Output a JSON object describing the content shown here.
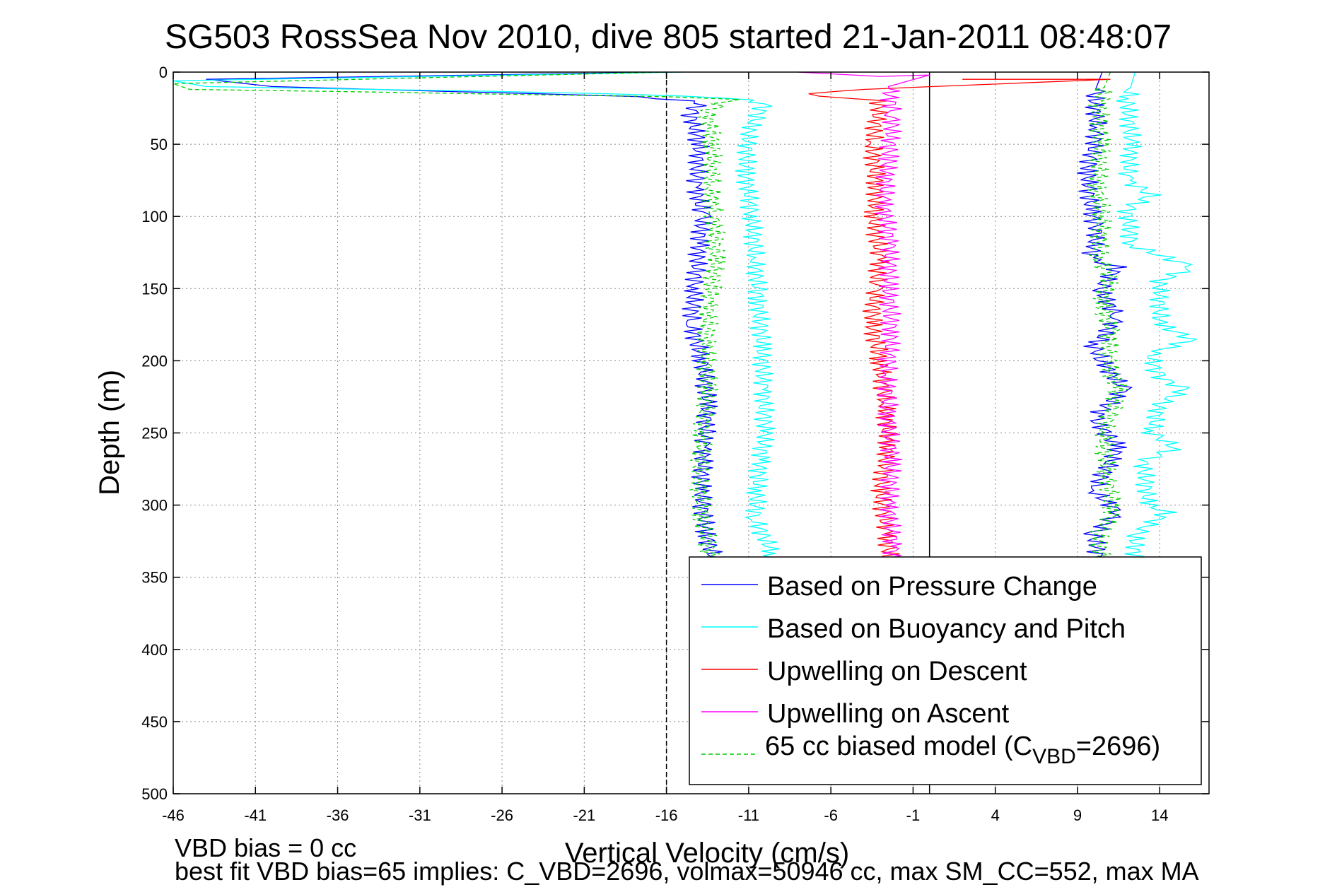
{
  "chart_data": {
    "type": "line",
    "title": "SG503 RossSea Nov 2010, dive 805 started 21-Jan-2011 08:48:07",
    "xlabel": "Vertical Velocity (cm/s)",
    "ylabel": "Depth (m)",
    "xlim": [
      -46,
      17
    ],
    "ylim": [
      0,
      500
    ],
    "y_reversed": true,
    "grid": true,
    "x_ticks": [
      -46,
      -41,
      -36,
      -31,
      -26,
      -21,
      -16,
      -11,
      -6,
      -1,
      4,
      9,
      14
    ],
    "y_ticks": [
      0,
      50,
      100,
      150,
      200,
      250,
      300,
      350,
      400,
      450,
      500
    ],
    "reference_lines": [
      {
        "x": -16,
        "style": "dashed",
        "color": "#000000"
      },
      {
        "x": 0,
        "style": "solid",
        "color": "#000000"
      }
    ],
    "legend_position": "lower-right",
    "legend": [
      {
        "label": "Based on Pressure Change",
        "color": "#0000ff",
        "style": "solid"
      },
      {
        "label": "Based on Buoyancy and Pitch",
        "color": "#00ffff",
        "style": "solid"
      },
      {
        "label": "Upwelling on Descent",
        "color": "#ff0000",
        "style": "solid"
      },
      {
        "label": "Upwelling on Ascent",
        "color": "#ff00ff",
        "style": "solid"
      },
      {
        "label_main": "65 cc biased model (C",
        "label_sub": "VBD",
        "label_end": "=2696)",
        "color": "#00cc00",
        "style": "dashed"
      }
    ],
    "series": [
      {
        "name": "Based on Pressure Change (descent)",
        "color": "#0000ff",
        "points": [
          [
            -16,
            0
          ],
          [
            -44,
            5
          ],
          [
            -40,
            10
          ],
          [
            -18,
            17
          ],
          [
            -14,
            20
          ],
          [
            -14.5,
            30
          ],
          [
            -14,
            50
          ],
          [
            -14.2,
            80
          ],
          [
            -13.8,
            100
          ],
          [
            -14,
            120
          ],
          [
            -14.3,
            150
          ],
          [
            -14.5,
            175
          ],
          [
            -13.8,
            200
          ],
          [
            -13.5,
            230
          ],
          [
            -13.7,
            260
          ],
          [
            -13.9,
            290
          ],
          [
            -13.6,
            320
          ],
          [
            -13,
            340
          ]
        ]
      },
      {
        "name": "Based on Buoyancy and Pitch (descent)",
        "color": "#00ffff",
        "points": [
          [
            -15,
            0
          ],
          [
            -46,
            6
          ],
          [
            -44,
            10
          ],
          [
            -19,
            15
          ],
          [
            -12,
            18
          ],
          [
            -10,
            22
          ],
          [
            -11,
            40
          ],
          [
            -11.2,
            70
          ],
          [
            -10.8,
            100
          ],
          [
            -10.6,
            130
          ],
          [
            -10.4,
            160
          ],
          [
            -10.2,
            190
          ],
          [
            -10.1,
            220
          ],
          [
            -10,
            250
          ],
          [
            -10.3,
            270
          ],
          [
            -10.5,
            290
          ],
          [
            -10.6,
            310
          ],
          [
            -9.5,
            335
          ],
          [
            -9.8,
            340
          ]
        ]
      },
      {
        "name": "65 cc biased model (descent)",
        "color": "#00cc00",
        "points": [
          [
            -16,
            0
          ],
          [
            -46,
            8
          ],
          [
            -45,
            12
          ],
          [
            -16,
            17
          ],
          [
            -12,
            19
          ],
          [
            -13.5,
            25
          ],
          [
            -13.2,
            50
          ],
          [
            -13.3,
            80
          ],
          [
            -13.1,
            100
          ],
          [
            -13,
            130
          ],
          [
            -13.4,
            160
          ],
          [
            -13.6,
            190
          ],
          [
            -13.5,
            220
          ],
          [
            -13.8,
            250
          ],
          [
            -14,
            280
          ],
          [
            -13.8,
            310
          ],
          [
            -13.2,
            340
          ]
        ]
      },
      {
        "name": "Upwelling on Descent",
        "color": "#ff0000",
        "points": [
          [
            2,
            5
          ],
          [
            11,
            5
          ],
          [
            -4,
            12
          ],
          [
            -8,
            15
          ],
          [
            -3,
            20
          ],
          [
            -3.5,
            50
          ],
          [
            -3.2,
            80
          ],
          [
            -3.4,
            100
          ],
          [
            -3,
            130
          ],
          [
            -3.3,
            150
          ],
          [
            -3.5,
            175
          ],
          [
            -3,
            200
          ],
          [
            -2.7,
            230
          ],
          [
            -2.5,
            260
          ],
          [
            -3,
            290
          ],
          [
            -2.6,
            320
          ],
          [
            -2.4,
            340
          ]
        ]
      },
      {
        "name": "Upwelling on Ascent",
        "color": "#ff00ff",
        "points": [
          [
            -8,
            0
          ],
          [
            -3,
            3
          ],
          [
            0,
            2
          ],
          [
            -2.5,
            10
          ],
          [
            -2.2,
            30
          ],
          [
            -2.5,
            60
          ],
          [
            -2.8,
            90
          ],
          [
            -2.4,
            120
          ],
          [
            -2.5,
            150
          ],
          [
            -2.3,
            180
          ],
          [
            -2.6,
            210
          ],
          [
            -2.5,
            240
          ],
          [
            -2.3,
            270
          ],
          [
            -2.5,
            300
          ],
          [
            -2.2,
            330
          ],
          [
            -2.4,
            340
          ]
        ]
      },
      {
        "name": "Based on Pressure Change (ascent)",
        "color": "#0000ff",
        "points": [
          [
            10.5,
            0
          ],
          [
            10,
            15
          ],
          [
            10.2,
            40
          ],
          [
            9.6,
            70
          ],
          [
            9.8,
            95
          ],
          [
            10.2,
            110
          ],
          [
            9.8,
            130
          ],
          [
            11.5,
            135
          ],
          [
            10.3,
            150
          ],
          [
            11.5,
            170
          ],
          [
            10,
            190
          ],
          [
            10.5,
            200
          ],
          [
            11.8,
            220
          ],
          [
            10,
            240
          ],
          [
            11.5,
            260
          ],
          [
            10,
            290
          ],
          [
            11.5,
            305
          ],
          [
            10,
            320
          ],
          [
            10.3,
            340
          ]
        ]
      },
      {
        "name": "Based on Buoyancy and Pitch (ascent)",
        "color": "#00ffff",
        "points": [
          [
            12.5,
            0
          ],
          [
            12,
            20
          ],
          [
            12.3,
            50
          ],
          [
            12,
            75
          ],
          [
            13.5,
            85
          ],
          [
            12,
            95
          ],
          [
            12.3,
            120
          ],
          [
            16,
            135
          ],
          [
            14,
            145
          ],
          [
            14,
            175
          ],
          [
            16,
            185
          ],
          [
            13.5,
            195
          ],
          [
            13.8,
            210
          ],
          [
            15.5,
            220
          ],
          [
            14,
            230
          ],
          [
            13.5,
            250
          ],
          [
            15,
            260
          ],
          [
            13,
            270
          ],
          [
            13.3,
            300
          ],
          [
            14.5,
            305
          ],
          [
            12.5,
            320
          ],
          [
            12.5,
            340
          ]
        ]
      },
      {
        "name": "65 cc biased model (ascent)",
        "color": "#00cc00",
        "points": [
          [
            11,
            0
          ],
          [
            10.3,
            20
          ],
          [
            10.4,
            50
          ],
          [
            10.2,
            80
          ],
          [
            10.5,
            100
          ],
          [
            10.3,
            130
          ],
          [
            11,
            140
          ],
          [
            10.5,
            160
          ],
          [
            11,
            180
          ],
          [
            10.8,
            200
          ],
          [
            11.5,
            220
          ],
          [
            10.6,
            250
          ],
          [
            10.8,
            280
          ],
          [
            11.2,
            305
          ],
          [
            10.3,
            320
          ],
          [
            10.5,
            340
          ]
        ]
      }
    ]
  },
  "footer": {
    "line1": "VBD bias = 0 cc",
    "line2": "best fit VBD bias=65 implies: C_VBD=2696, volmax=50946 cc, max SM_CC=552, max MA"
  }
}
